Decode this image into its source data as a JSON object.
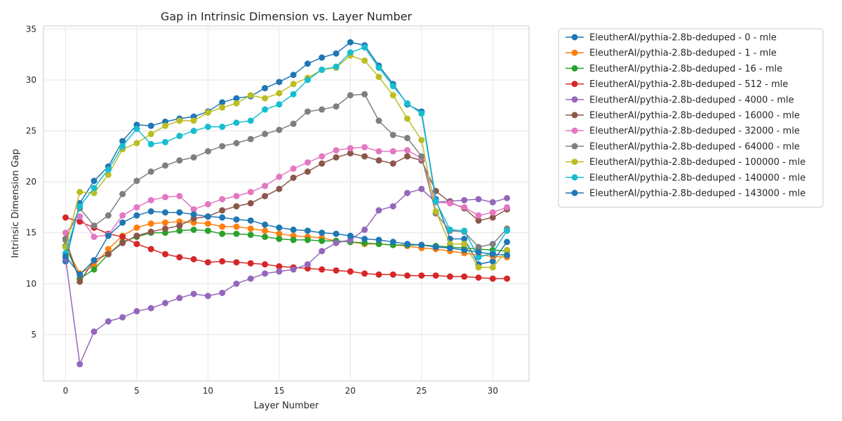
{
  "chart_data": {
    "type": "line",
    "title": "Gap in Intrinsic Dimension vs. Layer Number",
    "xlabel": "Layer Number",
    "ylabel": "Intrinsic Dimension Gap",
    "xlim": [
      -1.55,
      32.55
    ],
    "ylim": [
      0.45,
      35.3
    ],
    "xticks": [
      0,
      5,
      10,
      15,
      20,
      25,
      30
    ],
    "yticks": [
      5,
      10,
      15,
      20,
      25,
      30,
      35
    ],
    "grid": true,
    "legend_position": "outside-right",
    "x": [
      0,
      1,
      2,
      3,
      4,
      5,
      6,
      7,
      8,
      9,
      10,
      11,
      12,
      13,
      14,
      15,
      16,
      17,
      18,
      19,
      20,
      21,
      22,
      23,
      24,
      25,
      26,
      27,
      28,
      29,
      30,
      31
    ],
    "series": [
      {
        "name": "EleutherAI/pythia-2.8b-deduped - 0 - mle",
        "color": "#1f77b4",
        "values": [
          12.2,
          17.9,
          20.1,
          21.5,
          24.0,
          25.6,
          25.5,
          25.9,
          26.2,
          26.4,
          26.9,
          27.8,
          28.2,
          28.4,
          29.2,
          29.8,
          30.5,
          31.6,
          32.2,
          32.6,
          33.7,
          33.4,
          31.4,
          29.6,
          27.6,
          26.9,
          18.3,
          14.4,
          14.4,
          11.9,
          12.2,
          14.1
        ]
      },
      {
        "name": "EleutherAI/pythia-2.8b-deduped - 1 - mle",
        "color": "#ff7f0e",
        "values": [
          13.6,
          11.0,
          11.8,
          13.4,
          14.7,
          15.5,
          15.9,
          16.0,
          16.1,
          16.0,
          15.9,
          15.6,
          15.6,
          15.4,
          15.2,
          14.9,
          14.7,
          14.6,
          14.5,
          14.2,
          14.1,
          13.9,
          13.9,
          13.8,
          13.7,
          13.5,
          13.4,
          13.2,
          13.0,
          12.8,
          12.7,
          12.6
        ]
      },
      {
        "name": "EleutherAI/pythia-2.8b-deduped - 16 - mle",
        "color": "#2ca02c",
        "values": [
          13.7,
          10.5,
          11.4,
          12.9,
          14.1,
          14.6,
          15.0,
          15.0,
          15.2,
          15.3,
          15.2,
          14.9,
          14.9,
          14.8,
          14.6,
          14.4,
          14.3,
          14.3,
          14.2,
          14.2,
          14.1,
          14.0,
          13.9,
          13.8,
          13.8,
          13.8,
          13.7,
          13.6,
          13.5,
          13.4,
          13.3,
          13.2
        ]
      },
      {
        "name": "EleutherAI/pythia-2.8b-deduped - 512 - mle",
        "color": "#d62728",
        "values": [
          16.5,
          16.1,
          15.5,
          14.9,
          14.6,
          13.9,
          13.4,
          12.9,
          12.6,
          12.4,
          12.1,
          12.2,
          12.1,
          12.0,
          11.9,
          11.7,
          11.6,
          11.5,
          11.4,
          11.3,
          11.2,
          11.0,
          10.9,
          10.9,
          10.8,
          10.8,
          10.8,
          10.7,
          10.7,
          10.6,
          10.5,
          10.5
        ]
      },
      {
        "name": "EleutherAI/pythia-2.8b-deduped - 4000 - mle",
        "color": "#9467bd",
        "values": [
          12.5,
          2.1,
          5.3,
          6.3,
          6.7,
          7.3,
          7.6,
          8.1,
          8.6,
          9.0,
          8.8,
          9.1,
          10.0,
          10.5,
          11.0,
          11.2,
          11.4,
          11.9,
          13.2,
          14.0,
          14.3,
          15.3,
          17.2,
          17.6,
          18.9,
          19.3,
          18.0,
          18.1,
          18.2,
          18.3,
          18.0,
          18.4
        ]
      },
      {
        "name": "EleutherAI/pythia-2.8b-deduped - 16000 - mle",
        "color": "#8c564b",
        "values": [
          14.4,
          10.2,
          12.3,
          12.9,
          14.0,
          14.7,
          15.1,
          15.4,
          15.7,
          16.4,
          16.6,
          17.2,
          17.6,
          17.9,
          18.6,
          19.3,
          20.4,
          21.0,
          21.8,
          22.4,
          22.8,
          22.5,
          22.1,
          21.8,
          22.5,
          22.1,
          19.1,
          18.0,
          17.4,
          16.2,
          16.5,
          17.3
        ]
      },
      {
        "name": "EleutherAI/pythia-2.8b-deduped - 32000 - mle",
        "color": "#e377c2",
        "values": [
          15.0,
          16.6,
          14.6,
          14.8,
          16.7,
          17.5,
          18.2,
          18.5,
          18.6,
          17.3,
          17.8,
          18.3,
          18.6,
          19.0,
          19.6,
          20.5,
          21.3,
          21.9,
          22.5,
          23.1,
          23.3,
          23.4,
          23.0,
          23.0,
          23.1,
          22.3,
          18.0,
          17.9,
          17.5,
          16.7,
          17.0,
          17.5
        ]
      },
      {
        "name": "EleutherAI/pythia-2.8b-deduped - 64000 - mle",
        "color": "#7f7f7f",
        "values": [
          14.3,
          17.4,
          15.7,
          16.7,
          18.8,
          20.1,
          21.0,
          21.6,
          22.1,
          22.4,
          23.0,
          23.5,
          23.8,
          24.2,
          24.7,
          25.1,
          25.7,
          26.9,
          27.1,
          27.4,
          28.5,
          28.6,
          26.0,
          24.6,
          24.3,
          22.5,
          16.9,
          15.2,
          15.1,
          13.6,
          13.9,
          15.4
        ]
      },
      {
        "name": "EleutherAI/pythia-2.8b-deduped - 100000 - mle",
        "color": "#bcbd22",
        "values": [
          13.6,
          19.0,
          18.9,
          20.7,
          23.2,
          23.8,
          24.7,
          25.5,
          26.0,
          26.0,
          26.8,
          27.3,
          27.7,
          28.5,
          28.2,
          28.7,
          29.6,
          30.2,
          31.0,
          31.2,
          32.4,
          31.9,
          30.3,
          28.5,
          26.2,
          24.1,
          17.1,
          13.9,
          13.9,
          11.6,
          11.6,
          13.3
        ]
      },
      {
        "name": "EleutherAI/pythia-2.8b-deduped - 140000 - mle",
        "color": "#17becf",
        "values": [
          13.0,
          17.6,
          19.4,
          21.2,
          23.5,
          25.2,
          23.7,
          23.9,
          24.5,
          25.0,
          25.4,
          25.4,
          25.8,
          26.0,
          27.1,
          27.6,
          28.6,
          30.0,
          31.0,
          31.3,
          32.7,
          33.2,
          31.2,
          29.4,
          27.7,
          26.7,
          18.1,
          15.3,
          15.2,
          12.6,
          13.0,
          15.2
        ]
      },
      {
        "name": "EleutherAI/pythia-2.8b-deduped - 143000 - mle",
        "color": "#1f77b4",
        "values": [
          12.7,
          10.9,
          12.3,
          14.7,
          16.0,
          16.7,
          17.1,
          17.0,
          17.0,
          16.8,
          16.6,
          16.5,
          16.3,
          16.2,
          15.8,
          15.5,
          15.3,
          15.2,
          15.0,
          14.9,
          14.7,
          14.4,
          14.3,
          14.1,
          13.9,
          13.8,
          13.6,
          13.5,
          13.3,
          13.1,
          12.9,
          12.8
        ]
      }
    ]
  }
}
